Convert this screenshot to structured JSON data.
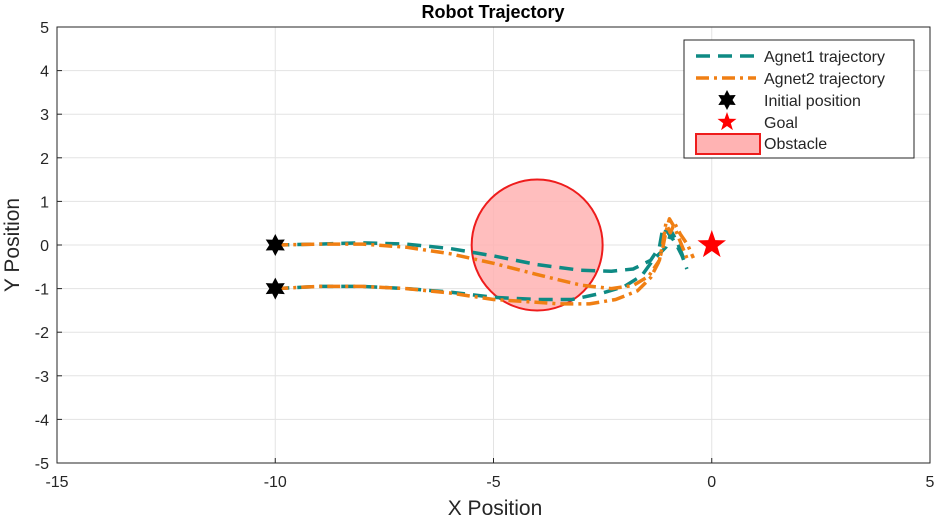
{
  "chart_data": {
    "type": "line",
    "title": "Robot Trajectory",
    "xlabel": "X Position",
    "ylabel": "Y Position",
    "xlim": [
      -15,
      5
    ],
    "ylim": [
      -5,
      5
    ],
    "xticks": [
      -15,
      -10,
      -5,
      0,
      5
    ],
    "yticks": [
      -5,
      -4,
      -3,
      -2,
      -1,
      0,
      1,
      2,
      3,
      4,
      5
    ],
    "grid": true,
    "legend_position": "top-right",
    "series": [
      {
        "name": "Agnet1 trajectory",
        "color": "#0e8a84",
        "style": "dashed",
        "paths": [
          [
            [
              -10,
              0
            ],
            [
              -9,
              0.02
            ],
            [
              -8,
              0.05
            ],
            [
              -7,
              0.02
            ],
            [
              -6,
              -0.08
            ],
            [
              -5,
              -0.25
            ],
            [
              -4,
              -0.45
            ],
            [
              -3,
              -0.58
            ],
            [
              -2.3,
              -0.6
            ],
            [
              -1.8,
              -0.55
            ],
            [
              -1.4,
              -0.35
            ],
            [
              -1.2,
              -0.05
            ],
            [
              -1.12,
              0.4
            ],
            [
              -1.0,
              0.28
            ],
            [
              -0.88,
              0.12
            ],
            [
              -0.78,
              -0.05
            ],
            [
              -0.68,
              -0.25
            ],
            [
              -0.57,
              -0.55
            ]
          ],
          [
            [
              -10,
              -1
            ],
            [
              -9,
              -0.95
            ],
            [
              -8,
              -0.95
            ],
            [
              -7,
              -1.0
            ],
            [
              -6,
              -1.08
            ],
            [
              -5,
              -1.2
            ],
            [
              -4,
              -1.25
            ],
            [
              -3.2,
              -1.25
            ],
            [
              -2.5,
              -1.1
            ],
            [
              -2.0,
              -0.95
            ],
            [
              -1.6,
              -0.7
            ],
            [
              -1.35,
              -0.35
            ],
            [
              -1.05,
              -0.05
            ],
            [
              -0.92,
              0.3
            ],
            [
              -0.82,
              0.12
            ],
            [
              -0.72,
              -0.1
            ],
            [
              -0.62,
              -0.38
            ]
          ]
        ]
      },
      {
        "name": "Agnet2 trajectory",
        "color": "#f07f13",
        "style": "dashdot",
        "paths": [
          [
            [
              -10,
              0
            ],
            [
              -9,
              0.02
            ],
            [
              -8,
              0.02
            ],
            [
              -7,
              -0.05
            ],
            [
              -6,
              -0.2
            ],
            [
              -5,
              -0.42
            ],
            [
              -4,
              -0.68
            ],
            [
              -3,
              -0.92
            ],
            [
              -2.3,
              -1.0
            ],
            [
              -1.8,
              -0.93
            ],
            [
              -1.45,
              -0.72
            ],
            [
              -1.2,
              -0.35
            ],
            [
              -1.12,
              0.05
            ],
            [
              -1.05,
              0.5
            ],
            [
              -0.95,
              0.28
            ],
            [
              -0.85,
              0.5
            ],
            [
              -0.72,
              0.25
            ],
            [
              -0.55,
              0.0
            ],
            [
              -0.42,
              -0.3
            ]
          ],
          [
            [
              -10,
              -1
            ],
            [
              -9,
              -0.95
            ],
            [
              -8,
              -0.95
            ],
            [
              -7,
              -1.0
            ],
            [
              -6,
              -1.1
            ],
            [
              -5,
              -1.25
            ],
            [
              -4.2,
              -1.3
            ],
            [
              -3.5,
              -1.35
            ],
            [
              -2.8,
              -1.35
            ],
            [
              -2.2,
              -1.25
            ],
            [
              -1.7,
              -1.05
            ],
            [
              -1.4,
              -0.75
            ],
            [
              -1.22,
              -0.4
            ],
            [
              -1.12,
              -0.05
            ],
            [
              -1.05,
              0.3
            ],
            [
              -0.97,
              0.6
            ],
            [
              -0.85,
              0.4
            ],
            [
              -0.75,
              0.15
            ],
            [
              -0.65,
              -0.1
            ],
            [
              -0.55,
              -0.35
            ]
          ]
        ]
      }
    ],
    "initial_positions": {
      "name": "Initial position",
      "color": "#000000",
      "points": [
        [
          -10,
          0
        ],
        [
          -10,
          -1
        ]
      ]
    },
    "goal": {
      "name": "Goal",
      "color": "#ff0000",
      "point": [
        0,
        0
      ]
    },
    "obstacle": {
      "name": "Obstacle",
      "center": [
        -4,
        0
      ],
      "radius": 1.5,
      "fill": "#ffb3b3",
      "edge": "#ee1c1c"
    }
  }
}
